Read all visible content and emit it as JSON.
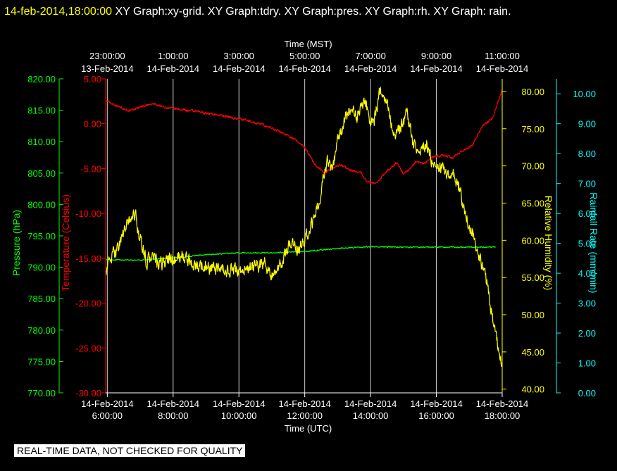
{
  "header": {
    "timestamp": "14-feb-2014,18:00:00",
    "title": "XY Graph:xy-grid.  XY Graph:tdry.  XY Graph:pres.  XY Graph:rh.  XY Graph: rain."
  },
  "notice": "REAL-TIME DATA, NOT CHECKED FOR QUALITY",
  "chart_data": {
    "type": "line",
    "top_axis": {
      "label": "Time (MST)",
      "ticks": [
        {
          "time": "23:00:00",
          "date": "13-Feb-2014"
        },
        {
          "time": "1:00:00",
          "date": "14-Feb-2014"
        },
        {
          "time": "3:00:00",
          "date": "14-Feb-2014"
        },
        {
          "time": "5:00:00",
          "date": "14-Feb-2014"
        },
        {
          "time": "7:00:00",
          "date": "14-Feb-2014"
        },
        {
          "time": "9:00:00",
          "date": "14-Feb-2014"
        },
        {
          "time": "11:00:00",
          "date": "14-Feb-2014"
        }
      ]
    },
    "bottom_axis": {
      "label": "Time (UTC)",
      "range_hours": [
        5.95,
        18.0
      ],
      "ticks": [
        {
          "hour": 6,
          "date": "14-Feb-2014",
          "time": "6:00:00"
        },
        {
          "hour": 8,
          "date": "14-Feb-2014",
          "time": "8:00:00"
        },
        {
          "hour": 10,
          "date": "14-Feb-2014",
          "time": "10:00:00"
        },
        {
          "hour": 12,
          "date": "14-Feb-2014",
          "time": "12:00:00"
        },
        {
          "hour": 14,
          "date": "14-Feb-2014",
          "time": "14:00:00"
        },
        {
          "hour": 16,
          "date": "14-Feb-2014",
          "time": "16:00:00"
        },
        {
          "hour": 18,
          "date": "14-Feb-2014",
          "time": "18:00:00"
        }
      ]
    },
    "axes": {
      "pressure": {
        "label": "Pressure (hPa)",
        "color": "#00ff00",
        "min": 770,
        "max": 820,
        "step": 5,
        "ticks": [
          "820.00",
          "815.00",
          "810.00",
          "805.00",
          "800.00",
          "795.00",
          "790.00",
          "785.00",
          "780.00",
          "775.00",
          "770.00"
        ]
      },
      "temperature": {
        "label": "Temperature (Celsius)",
        "color": "#ff0000",
        "min": -30,
        "max": 5,
        "step": 5,
        "ticks": [
          "5.00",
          "0.00",
          "-5.00",
          "-10.00",
          "-15.00",
          "-20.00",
          "-25.00",
          "-30.00"
        ]
      },
      "humidity": {
        "label": "Relative Humidity (%)",
        "color": "#ffff00",
        "min": 39.5,
        "max": 81.7,
        "step": 5,
        "ticks": [
          "80.00",
          "75.00",
          "70.00",
          "65.00",
          "60.00",
          "55.00",
          "50.00",
          "45.00",
          "40.00"
        ]
      },
      "rain": {
        "label": "Rainfall Rate (mm/min)",
        "color": "#00ffff",
        "min": 0,
        "max": 10.5,
        "step": 1,
        "ticks": [
          "10.00",
          "9.00",
          "8.00",
          "7.00",
          "6.00",
          "5.00",
          "4.00",
          "3.00",
          "2.00",
          "1.00",
          "0.00"
        ]
      }
    },
    "grid": true,
    "series": [
      {
        "key": "temperature",
        "axis": "temperature",
        "color": "#ff0000",
        "noise": 0.12,
        "x": [
          5.95,
          6.3,
          6.7,
          7.0,
          7.4,
          7.8,
          8.2,
          8.8,
          9.5,
          10.2,
          10.8,
          11.2,
          11.6,
          12.0,
          12.3,
          12.6,
          12.9,
          13.1,
          13.4,
          13.7,
          13.9,
          14.2,
          14.4,
          14.6,
          14.8,
          15.0,
          15.2,
          15.4,
          15.6,
          15.9,
          16.2,
          16.5,
          16.8,
          17.1,
          17.4,
          17.7,
          18.0
        ],
        "y": [
          2.6,
          2.0,
          1.4,
          1.9,
          2.2,
          1.8,
          1.6,
          1.3,
          0.9,
          0.4,
          -0.2,
          -0.8,
          -1.5,
          -2.6,
          -4.5,
          -5.5,
          -4.8,
          -4.6,
          -5.2,
          -5.4,
          -6.5,
          -6.6,
          -5.6,
          -5.0,
          -4.3,
          -5.6,
          -5.0,
          -4.2,
          -4.5,
          -3.7,
          -3.5,
          -3.8,
          -3.0,
          -2.4,
          -0.3,
          0.6,
          3.8
        ]
      },
      {
        "key": "pressure",
        "axis": "pressure",
        "color": "#00ff00",
        "noise": 0.08,
        "x": [
          5.95,
          7.0,
          8.0,
          9.0,
          10.0,
          11.0,
          12.0,
          13.0,
          14.0,
          15.0,
          16.0,
          17.0,
          17.8
        ],
        "y": [
          791.2,
          791.1,
          791.5,
          792.0,
          792.3,
          792.3,
          792.5,
          793.0,
          793.3,
          793.2,
          793.2,
          793.2,
          793.2
        ]
      },
      {
        "key": "humidity",
        "axis": "humidity",
        "color": "#ffff00",
        "noise": 0.8,
        "x": [
          5.95,
          6.1,
          6.3,
          6.5,
          6.7,
          6.85,
          7.0,
          7.2,
          7.4,
          7.55,
          7.7,
          7.9,
          8.1,
          8.3,
          8.5,
          8.7,
          9.0,
          9.3,
          9.6,
          9.9,
          10.2,
          10.5,
          10.8,
          11.0,
          11.2,
          11.4,
          11.6,
          11.8,
          12.0,
          12.2,
          12.4,
          12.55,
          12.7,
          12.85,
          13.0,
          13.2,
          13.4,
          13.6,
          13.8,
          14.0,
          14.1,
          14.3,
          14.5,
          14.7,
          14.9,
          15.1,
          15.3,
          15.5,
          15.7,
          15.9,
          16.1,
          16.3,
          16.5,
          16.7,
          16.9,
          17.1,
          17.3,
          17.5,
          17.7,
          17.85,
          18.0
        ],
        "y": [
          56,
          57.5,
          59,
          61,
          63,
          63.5,
          60,
          57,
          58,
          56.5,
          57,
          57.5,
          57.5,
          58,
          57,
          56.5,
          56.5,
          56,
          55.8,
          56,
          56,
          56.5,
          57,
          55,
          56,
          58,
          60,
          58.5,
          60,
          62,
          64.5,
          68,
          71,
          70,
          73,
          76,
          78,
          76.5,
          79,
          76,
          76,
          80,
          79,
          74,
          75,
          77,
          73,
          72,
          73,
          70,
          70,
          69,
          69,
          67,
          63,
          61,
          58,
          55,
          50,
          46,
          43.5
        ]
      }
    ]
  }
}
